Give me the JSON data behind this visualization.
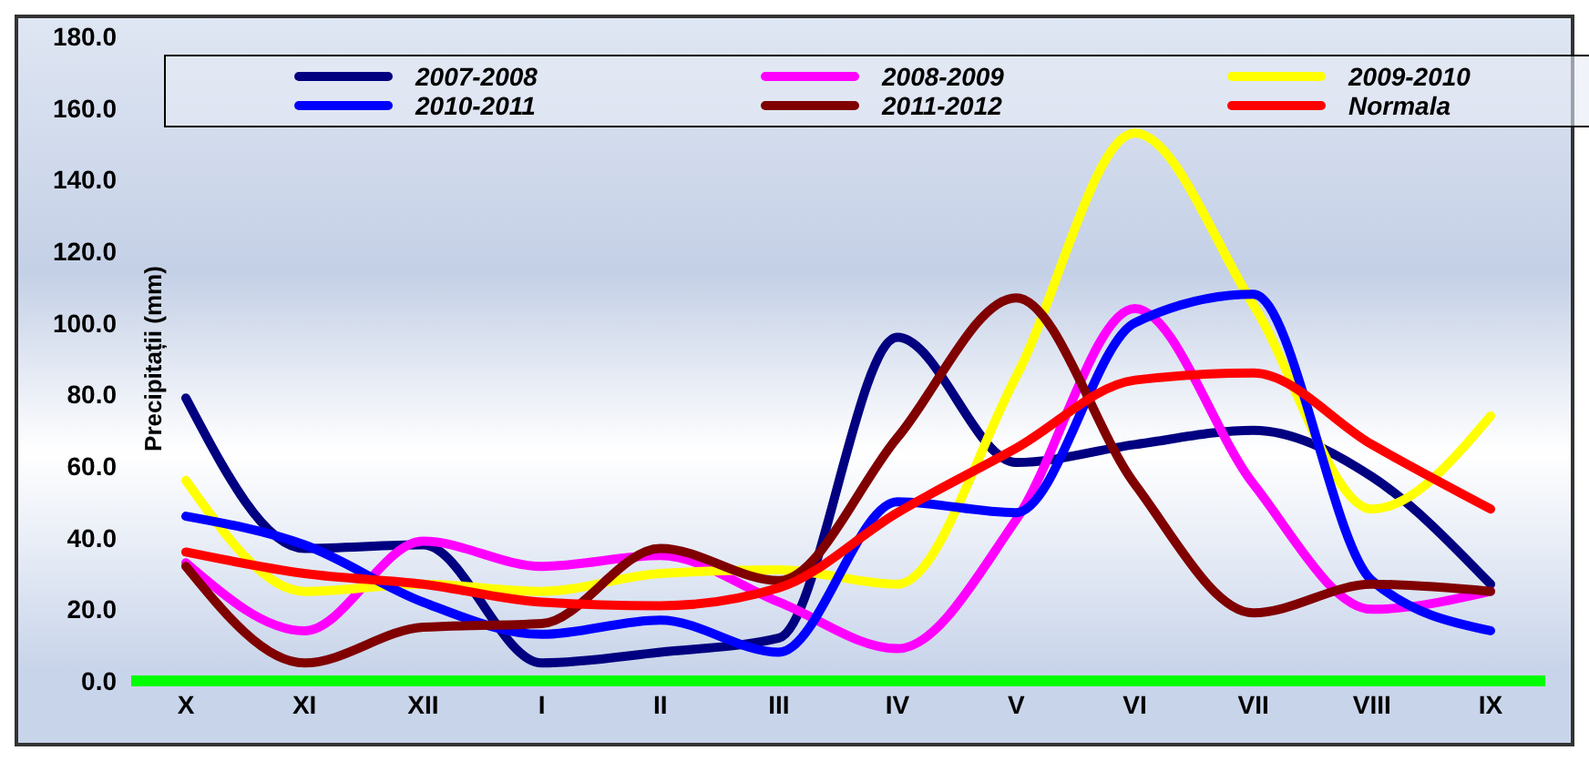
{
  "chart_data": {
    "type": "line",
    "ylabel": "Precipitații (mm)",
    "categories": [
      "X",
      "XI",
      "XII",
      "I",
      "II",
      "III",
      "IV",
      "V",
      "VI",
      "VII",
      "VIII",
      "IX"
    ],
    "series": [
      {
        "name": "2007-2008",
        "color": "#000080",
        "values": [
          79,
          37,
          38,
          5,
          8,
          12,
          96,
          61,
          66,
          70,
          57,
          27
        ]
      },
      {
        "name": "2008-2009",
        "color": "#ff00ff",
        "values": [
          33,
          14,
          39,
          32,
          35,
          22,
          9,
          45,
          104,
          55,
          20,
          25
        ]
      },
      {
        "name": "2009-2010",
        "color": "#ffff00",
        "values": [
          56,
          25,
          27,
          25,
          30,
          31,
          27,
          85,
          153,
          105,
          48,
          74
        ]
      },
      {
        "name": "2010-2011",
        "color": "#0000ff",
        "values": [
          46,
          38,
          22,
          13,
          17,
          8,
          50,
          47,
          100,
          108,
          28,
          14
        ]
      },
      {
        "name": "2011-2012",
        "color": "#800000",
        "values": [
          32,
          5,
          15,
          16,
          37,
          28,
          68,
          107,
          55,
          19,
          27,
          25
        ]
      },
      {
        "name": "Normala",
        "color": "#ff0000",
        "values": [
          36,
          30,
          27,
          22,
          21,
          26,
          47,
          65,
          84,
          86,
          66,
          48
        ]
      }
    ],
    "ylim": [
      0,
      180
    ],
    "yticks": [
      {
        "value": 0,
        "label": "0.0"
      },
      {
        "value": 20,
        "label": "20.0"
      },
      {
        "value": 40,
        "label": "40.0"
      },
      {
        "value": 60,
        "label": "60.0"
      },
      {
        "value": 80,
        "label": "80.0"
      },
      {
        "value": 100,
        "label": "100.0"
      },
      {
        "value": 120,
        "label": "120.0"
      },
      {
        "value": 140,
        "label": "140.0"
      },
      {
        "value": 160,
        "label": "160.0"
      },
      {
        "value": 180,
        "label": "180.0"
      }
    ],
    "grid": false,
    "legend": "top",
    "marker": "none",
    "line_style": "solid"
  }
}
